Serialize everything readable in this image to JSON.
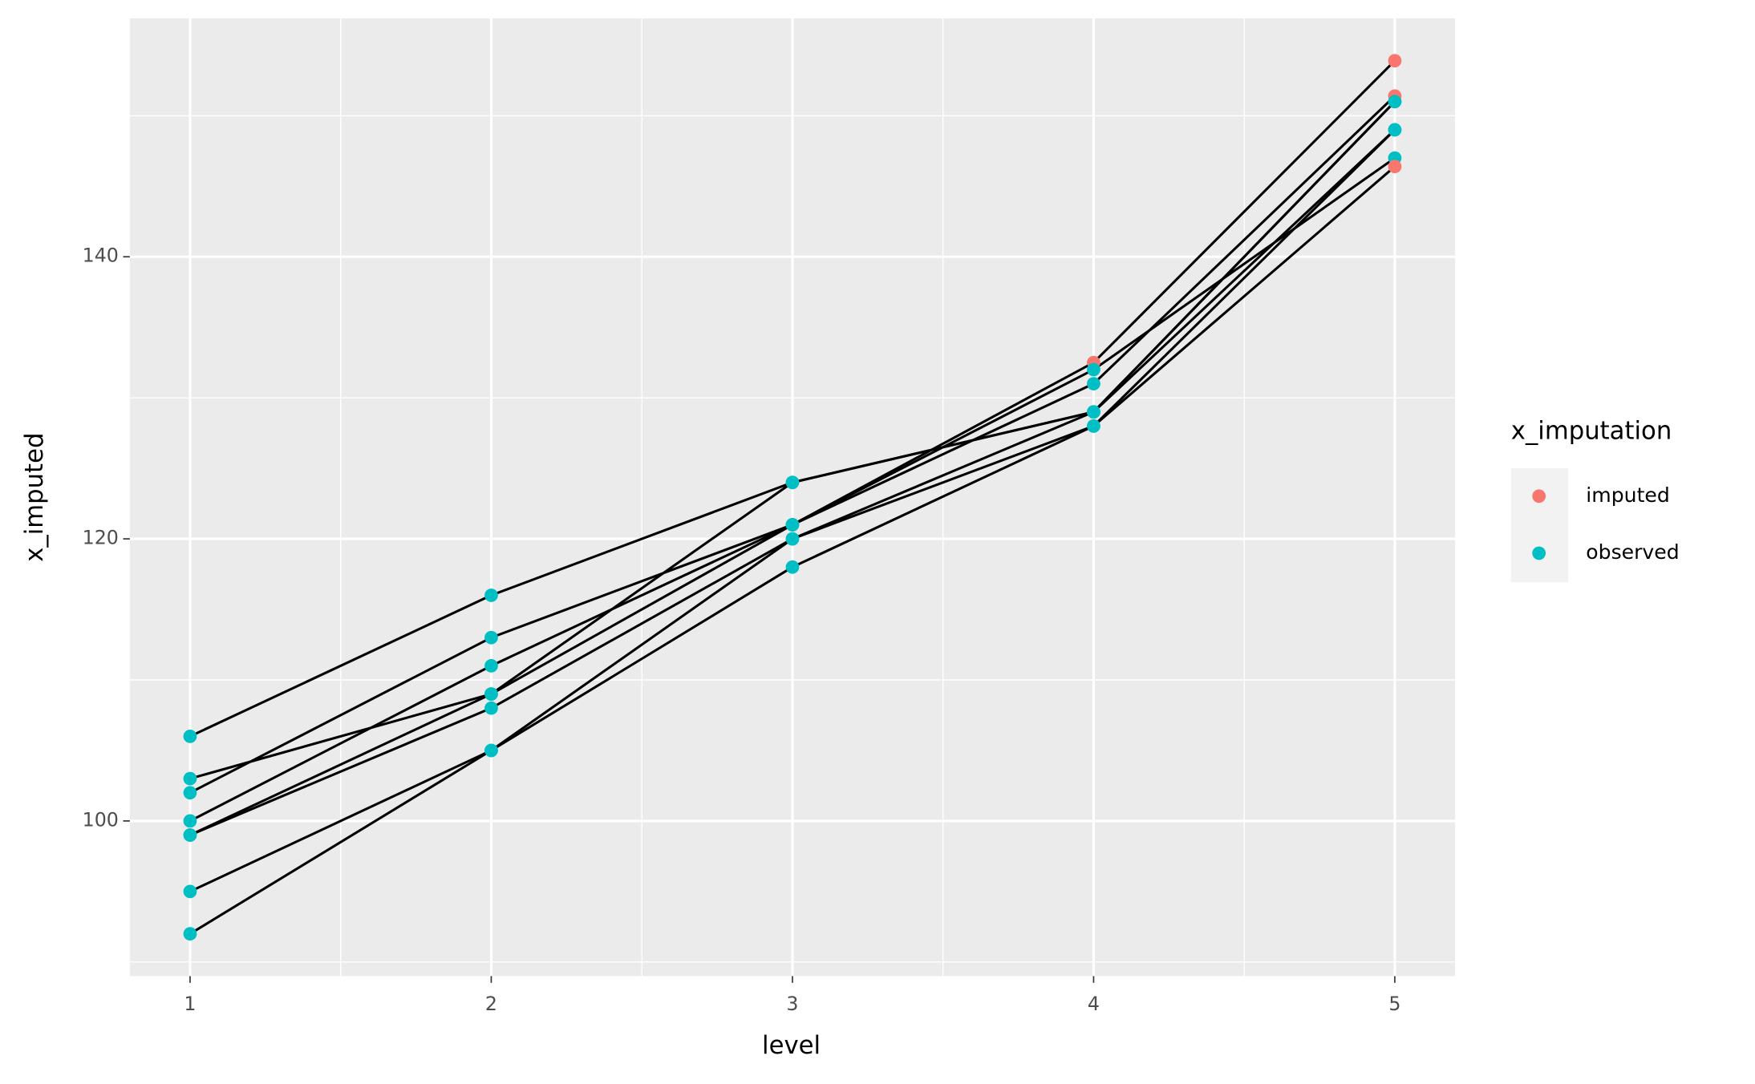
{
  "chart_data": {
    "type": "line",
    "x_label": "level",
    "y_label": "x_imputed",
    "x": [
      1,
      2,
      3,
      4,
      5
    ],
    "xlim": [
      0.8,
      5.2
    ],
    "xticks": [
      1,
      2,
      3,
      4,
      5
    ],
    "x_minor_grid": [
      1.5,
      2.5,
      3.5,
      4.5
    ],
    "ylim": [
      89,
      156.9
    ],
    "yticks": [
      100,
      120,
      140
    ],
    "y_minor_grid": [
      90,
      110,
      130,
      150
    ],
    "grid": true,
    "line_color": "#000000",
    "panel_color": "#EBEBEB",
    "legend": {
      "title": "x_imputation",
      "position": "right",
      "items": [
        {
          "name": "imputed",
          "color": "#F8766D"
        },
        {
          "name": "observed",
          "color": "#00BFC4"
        }
      ]
    },
    "series": [
      {
        "values": [
          106,
          116,
          124,
          129,
          149
        ],
        "imputation": [
          "observed",
          "observed",
          "observed",
          "observed",
          "observed"
        ]
      },
      {
        "values": [
          103,
          109,
          124,
          129,
          151
        ],
        "imputation": [
          "observed",
          "observed",
          "observed",
          "observed",
          "observed"
        ]
      },
      {
        "values": [
          102,
          113,
          121,
          132.5,
          153.9
        ],
        "imputation": [
          "observed",
          "observed",
          "observed",
          "imputed",
          "imputed"
        ]
      },
      {
        "values": [
          100,
          111,
          121,
          131,
          151.4
        ],
        "imputation": [
          "observed",
          "observed",
          "observed",
          "observed",
          "imputed"
        ]
      },
      {
        "values": [
          99,
          109,
          121,
          132,
          147
        ],
        "imputation": [
          "observed",
          "observed",
          "observed",
          "observed",
          "observed"
        ]
      },
      {
        "values": [
          99,
          108,
          120,
          128,
          146.4
        ],
        "imputation": [
          "observed",
          "observed",
          "observed",
          "observed",
          "imputed"
        ]
      },
      {
        "values": [
          95,
          105,
          120,
          129,
          151
        ],
        "imputation": [
          "observed",
          "observed",
          "observed",
          "observed",
          "observed"
        ]
      },
      {
        "values": [
          92,
          105,
          118,
          128,
          149
        ],
        "imputation": [
          "observed",
          "observed",
          "observed",
          "observed",
          "observed"
        ]
      }
    ]
  }
}
